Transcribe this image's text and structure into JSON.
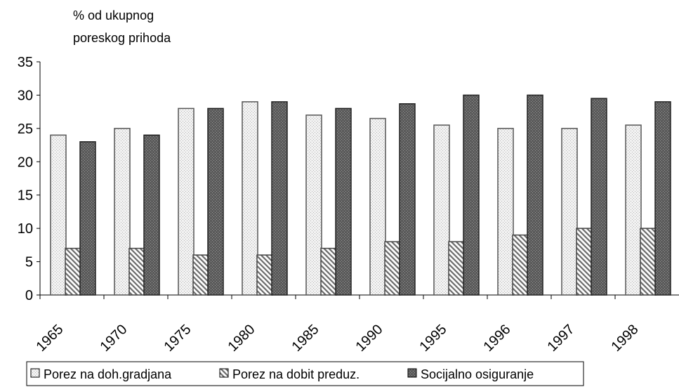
{
  "chart_data": {
    "type": "bar",
    "title": "",
    "ylabel": [
      "% od ukupnog",
      "poreskog prihoda"
    ],
    "xlabel": "",
    "ylim": [
      0,
      35
    ],
    "yticks": [
      0,
      5,
      10,
      15,
      20,
      25,
      30,
      35
    ],
    "grid": false,
    "legend_position": "bottom",
    "categories": [
      "1965",
      "1970",
      "1975",
      "1980",
      "1985",
      "1990",
      "1995",
      "1996",
      "1997",
      "1998"
    ],
    "series": [
      {
        "name": "Porez na doh.gradjana",
        "values": [
          24,
          25,
          28,
          29,
          27,
          26.5,
          25.5,
          25,
          25,
          25.5
        ],
        "color": "#e8e8e8",
        "pattern": "dotted-light"
      },
      {
        "name": "Porez na dobit preduz.",
        "values": [
          7,
          7,
          6,
          6,
          7,
          8,
          8,
          9,
          10,
          10
        ],
        "color": "#b0b0b0",
        "pattern": "diagonal-hatch"
      },
      {
        "name": "Socijalno osiguranje",
        "values": [
          23,
          24,
          28,
          29,
          28,
          28.7,
          30,
          30,
          29.5,
          29
        ],
        "color": "#6a6a6a",
        "pattern": "dotted-dark"
      }
    ]
  }
}
